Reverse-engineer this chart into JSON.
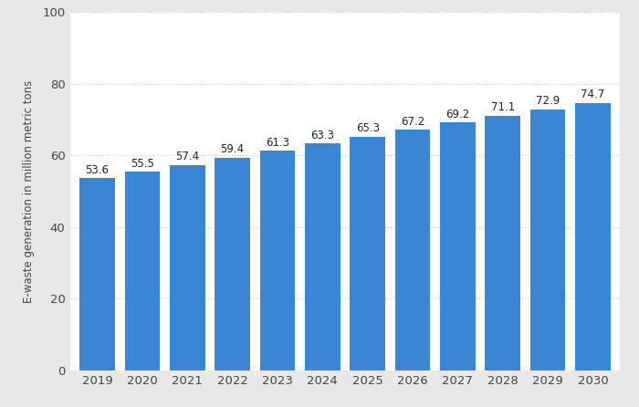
{
  "years": [
    2019,
    2020,
    2021,
    2022,
    2023,
    2024,
    2025,
    2026,
    2027,
    2028,
    2029,
    2030
  ],
  "values": [
    53.6,
    55.5,
    57.4,
    59.4,
    61.3,
    63.3,
    65.3,
    67.2,
    69.2,
    71.1,
    72.9,
    74.7
  ],
  "bar_color": "#3a86d4",
  "ylabel": "E-waste generation in million metric tons",
  "ylim": [
    0,
    100
  ],
  "yticks": [
    0,
    20,
    40,
    60,
    80,
    100
  ],
  "outer_background": "#e8e8e8",
  "plot_background": "#ffffff",
  "grid_color": "#cccccc",
  "label_fontsize": 9.5,
  "axis_label_fontsize": 8.5,
  "bar_label_fontsize": 8.5,
  "bar_width": 0.78
}
